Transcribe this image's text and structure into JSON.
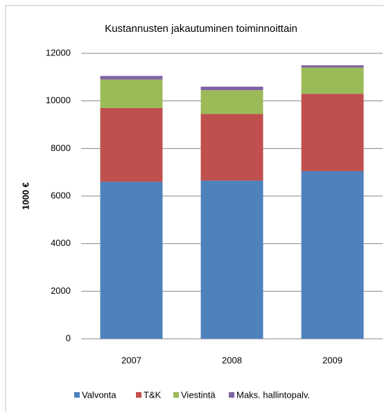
{
  "chart_data": {
    "type": "bar",
    "stacked": true,
    "title": "Kustannusten jakautuminen toiminnoittain",
    "y_label": "1000 €",
    "categories": [
      "2007",
      "2008",
      "2009"
    ],
    "series": [
      {
        "name": "Valvonta",
        "color": "#4f81bd",
        "values": [
          6600,
          6650,
          7050
        ]
      },
      {
        "name": "T&K",
        "color": "#c0504d",
        "values": [
          3100,
          2800,
          3250
        ]
      },
      {
        "name": "Viestintä",
        "color": "#9bbb59",
        "values": [
          1200,
          1000,
          1100
        ]
      },
      {
        "name": "Maks. hallintopalv.",
        "color": "#8064a2",
        "values": [
          150,
          150,
          100
        ]
      }
    ],
    "ylim": [
      0,
      12000
    ],
    "yticks": [
      0,
      2000,
      4000,
      6000,
      8000,
      10000,
      12000
    ],
    "grid": true,
    "legend": "bottom"
  }
}
